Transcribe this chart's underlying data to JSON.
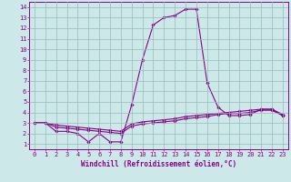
{
  "xlabel": "Windchill (Refroidissement éolien,°C)",
  "background_color": "#cce8e8",
  "line_color": "#880088",
  "xlim": [
    -0.5,
    23.5
  ],
  "ylim": [
    0.5,
    14.5
  ],
  "xticks": [
    0,
    1,
    2,
    3,
    4,
    5,
    6,
    7,
    8,
    9,
    10,
    11,
    12,
    13,
    14,
    15,
    16,
    17,
    18,
    19,
    20,
    21,
    22,
    23
  ],
  "yticks": [
    1,
    2,
    3,
    4,
    5,
    6,
    7,
    8,
    9,
    10,
    11,
    12,
    13,
    14
  ],
  "curve1_x": [
    0,
    1,
    2,
    3,
    4,
    5,
    6,
    7,
    8,
    9,
    10,
    11,
    12,
    13,
    14,
    15,
    16,
    17,
    18,
    19,
    20,
    21,
    22,
    23
  ],
  "curve1_y": [
    3.0,
    3.0,
    2.2,
    2.2,
    2.0,
    1.2,
    2.0,
    1.2,
    1.2,
    4.7,
    9.0,
    12.3,
    13.0,
    13.2,
    13.8,
    13.8,
    6.8,
    4.5,
    3.7,
    3.7,
    3.8,
    4.3,
    4.3,
    3.7
  ],
  "curve2_x": [
    0,
    1,
    2,
    3,
    4,
    5,
    6,
    7,
    8,
    9,
    10,
    11,
    12,
    13,
    14,
    15,
    16,
    17,
    18,
    19,
    20,
    21,
    22,
    23
  ],
  "curve2_y": [
    3.0,
    3.0,
    2.8,
    2.7,
    2.6,
    2.5,
    2.4,
    2.3,
    2.2,
    2.9,
    3.1,
    3.2,
    3.3,
    3.4,
    3.6,
    3.7,
    3.8,
    3.9,
    4.0,
    4.1,
    4.2,
    4.3,
    4.3,
    3.8
  ],
  "curve3_x": [
    0,
    1,
    2,
    3,
    4,
    5,
    6,
    7,
    8,
    9,
    10,
    11,
    12,
    13,
    14,
    15,
    16,
    17,
    18,
    19,
    20,
    21,
    22,
    23
  ],
  "curve3_y": [
    3.0,
    3.0,
    2.6,
    2.5,
    2.4,
    2.3,
    2.2,
    2.1,
    2.0,
    2.7,
    2.9,
    3.0,
    3.1,
    3.2,
    3.4,
    3.5,
    3.6,
    3.8,
    3.9,
    3.9,
    4.0,
    4.2,
    4.2,
    3.7
  ],
  "grid_color": "#99bbbb",
  "marker": "D",
  "markersize": 1.8,
  "linewidth": 0.8,
  "xlabel_fontsize": 5.5,
  "tick_fontsize": 5.0
}
